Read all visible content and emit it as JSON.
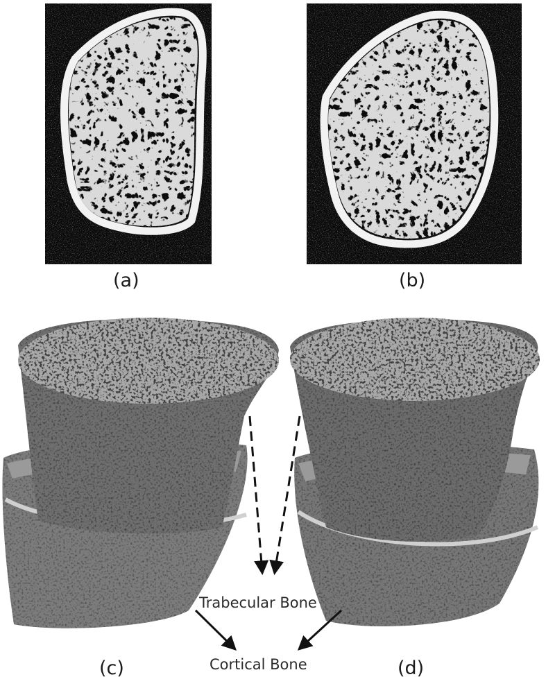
{
  "panels": {
    "a": {
      "label": "(a)"
    },
    "b": {
      "label": "(b)"
    },
    "c": {
      "label": "(c)"
    },
    "d": {
      "label": "(d)"
    }
  },
  "annotations": {
    "trabecular": "Trabecular Bone",
    "cortical": "Cortical Bone"
  },
  "colors": {
    "ct_background": "#0b0b0b",
    "bone_white": "#f2f2f2",
    "render_gray": "#8a8a8a",
    "render_dark": "#3c3c3c"
  }
}
